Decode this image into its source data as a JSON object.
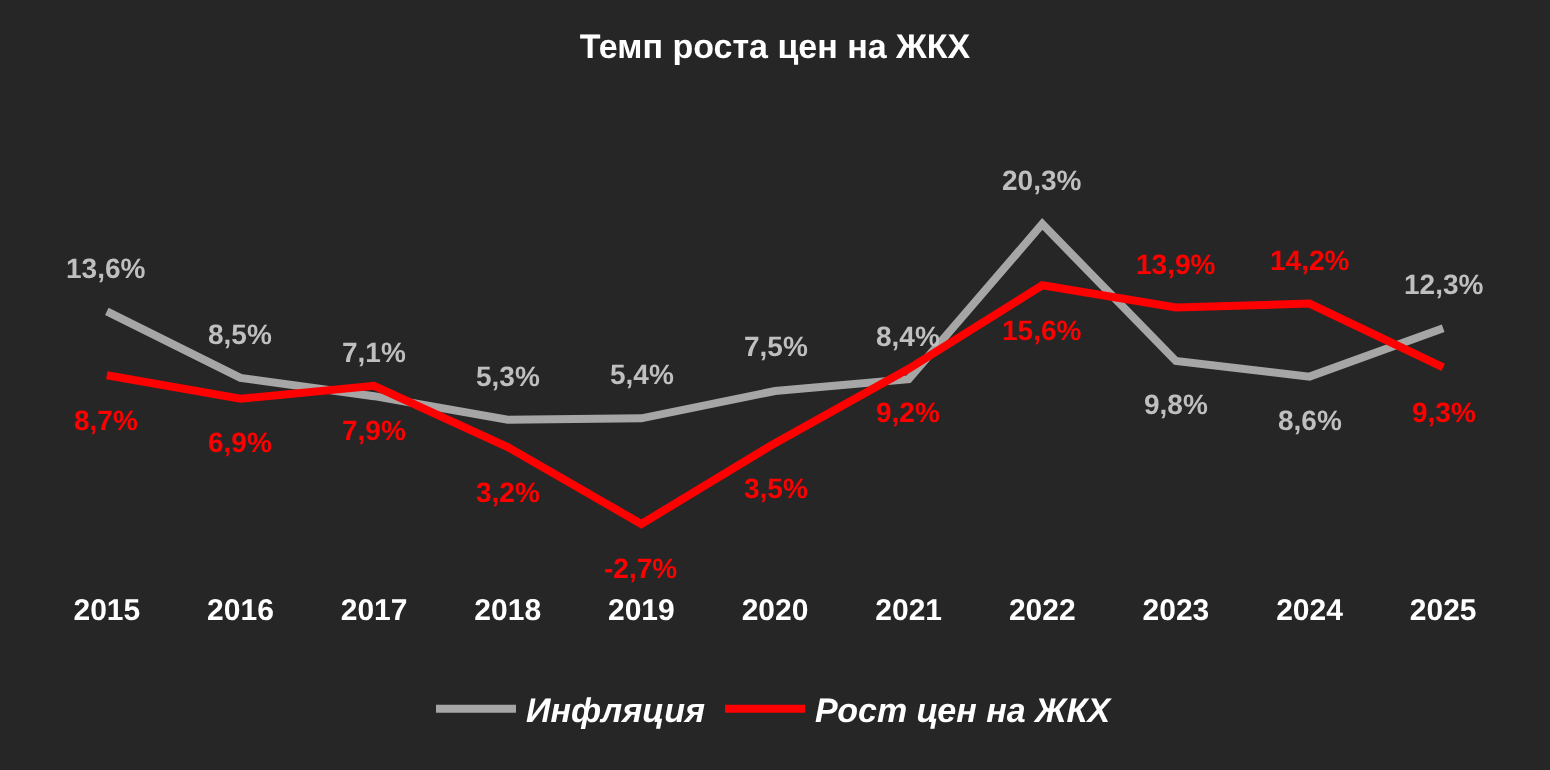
{
  "chart_data": {
    "type": "line",
    "title": "Темп роста цен на ЖКХ",
    "categories": [
      "2015",
      "2016",
      "2017",
      "2018",
      "2019",
      "2020",
      "2021",
      "2022",
      "2023",
      "2024",
      "2025"
    ],
    "series": [
      {
        "name": "Инфляция",
        "color": "#a6a6a6",
        "values": [
          13.6,
          8.5,
          7.1,
          5.3,
          5.4,
          7.5,
          8.4,
          20.3,
          9.8,
          8.6,
          12.3
        ],
        "value_labels": [
          "13,6%",
          "8,5%",
          "7,1%",
          "5,3%",
          "5,4%",
          "7,5%",
          "8,4%",
          "20,3%",
          "9,8%",
          "8,6%",
          "12,3%"
        ]
      },
      {
        "name": "Рост цен на ЖКХ",
        "color": "#ff0000",
        "values": [
          8.7,
          6.9,
          7.9,
          3.2,
          -2.7,
          3.5,
          9.2,
          15.6,
          13.9,
          14.2,
          9.3
        ],
        "value_labels": [
          "8,7%",
          "6,9%",
          "7,9%",
          "3,2%",
          "-2,7%",
          "3,5%",
          "9,2%",
          "15,6%",
          "13,9%",
          "14,2%",
          "9,3%"
        ]
      }
    ],
    "legend": "bottom",
    "grid": false,
    "marker": "none",
    "line_style": "solid",
    "tick_labels": "x"
  }
}
